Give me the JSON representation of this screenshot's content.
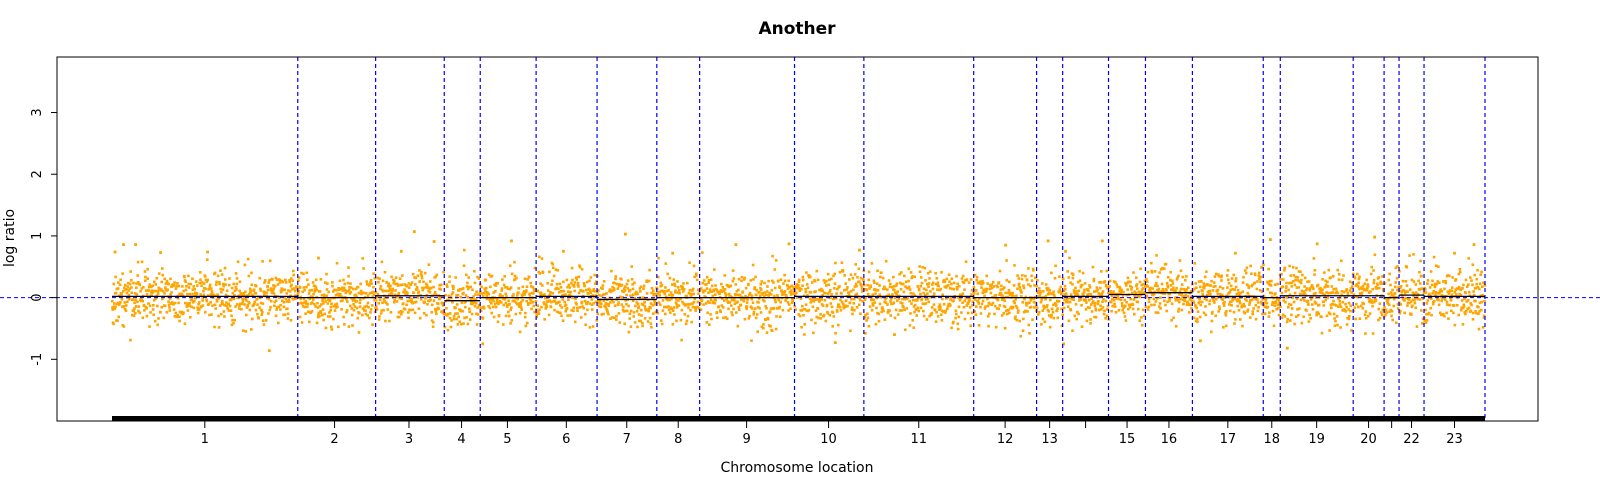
{
  "chart_data": {
    "type": "scatter",
    "title": "Another",
    "xlabel": "Chromosome location",
    "ylabel": "log ratio",
    "ylim": [
      -2.0,
      3.9
    ],
    "yticks": [
      -1,
      0,
      1,
      2,
      3
    ],
    "x_axis": "genome position (fraction of plotted genome, 0-1)",
    "reference_line_y": 0,
    "grid": false,
    "legend": "none",
    "colors": {
      "points": "#ffa500",
      "chromosome_boundaries": "#0000ff",
      "zero_line": "#0000ff",
      "segment_line": "#000000",
      "baseline_bar": "#000000"
    },
    "chromosome_boundaries": [
      0.1353,
      0.192,
      0.242,
      0.2682,
      0.3089,
      0.3533,
      0.3968,
      0.428,
      0.4971,
      0.5476,
      0.6276,
      0.6734,
      0.6924,
      0.7258,
      0.7527,
      0.7869,
      0.8385,
      0.8509,
      0.904,
      0.9265,
      0.9374,
      0.9556
    ],
    "chromosome_ticks": [
      {
        "label": "1",
        "x": 0.0676
      },
      {
        "label": "2",
        "x": 0.1621
      },
      {
        "label": "3",
        "x": 0.2163
      },
      {
        "label": "4",
        "x": 0.2546
      },
      {
        "label": "5",
        "x": 0.288
      },
      {
        "label": "6",
        "x": 0.3309
      },
      {
        "label": "7",
        "x": 0.3749
      },
      {
        "label": "8",
        "x": 0.4124
      },
      {
        "label": "9",
        "x": 0.4622
      },
      {
        "label": "10",
        "x": 0.5219
      },
      {
        "label": "11",
        "x": 0.5876
      },
      {
        "label": "12",
        "x": 0.6505
      },
      {
        "label": "13",
        "x": 0.6829
      },
      {
        "label": "",
        "x": 0.7091
      },
      {
        "label": "15",
        "x": 0.7393
      },
      {
        "label": "16",
        "x": 0.7698
      },
      {
        "label": "17",
        "x": 0.8127
      },
      {
        "label": "18",
        "x": 0.8447
      },
      {
        "label": "19",
        "x": 0.8774
      },
      {
        "label": "20",
        "x": 0.9152
      },
      {
        "label": "",
        "x": 0.932
      },
      {
        "label": "22",
        "x": 0.9465
      },
      {
        "label": "23",
        "x": 0.9778
      }
    ],
    "noise_sd": 0.22,
    "segments": [
      {
        "chrom": "1",
        "mean": 0.02
      },
      {
        "chrom": "2",
        "mean": 0.0
      },
      {
        "chrom": "3",
        "mean": 0.03
      },
      {
        "chrom": "4",
        "mean": -0.05
      },
      {
        "chrom": "5",
        "mean": 0.0
      },
      {
        "chrom": "6",
        "mean": 0.02
      },
      {
        "chrom": "7",
        "mean": -0.03
      },
      {
        "chrom": "8",
        "mean": 0.0
      },
      {
        "chrom": "9",
        "mean": 0.0
      },
      {
        "chrom": "10",
        "mean": 0.02
      },
      {
        "chrom": "11",
        "mean": 0.02
      },
      {
        "chrom": "12",
        "mean": 0.0
      },
      {
        "chrom": "13",
        "mean": 0.0
      },
      {
        "chrom": "14",
        "mean": 0.02
      },
      {
        "chrom": "15",
        "mean": 0.05
      },
      {
        "chrom": "16",
        "mean": 0.08
      },
      {
        "chrom": "17",
        "mean": 0.02
      },
      {
        "chrom": "18",
        "mean": 0.0
      },
      {
        "chrom": "19",
        "mean": 0.03
      },
      {
        "chrom": "20",
        "mean": 0.03
      },
      {
        "chrom": "21",
        "mean": 0.0
      },
      {
        "chrom": "22",
        "mean": 0.04
      },
      {
        "chrom": "23",
        "mean": 0.02
      }
    ],
    "notable_points": [
      {
        "x": 0.0022,
        "y": 0.74
      },
      {
        "x": 0.0084,
        "y": 0.86
      },
      {
        "x": 0.0172,
        "y": 0.86
      },
      {
        "x": 0.0354,
        "y": 0.73
      },
      {
        "x": 0.0696,
        "y": 0.74
      },
      {
        "x": 0.1146,
        "y": -0.86
      },
      {
        "x": 0.1504,
        "y": 0.64
      },
      {
        "x": 0.2107,
        "y": 0.75
      },
      {
        "x": 0.2202,
        "y": 1.07
      },
      {
        "x": 0.2346,
        "y": 0.91
      },
      {
        "x": 0.27,
        "y": -0.75
      },
      {
        "x": 0.291,
        "y": 0.92
      },
      {
        "x": 0.3288,
        "y": 0.75
      },
      {
        "x": 0.3739,
        "y": 1.03
      },
      {
        "x": 0.4084,
        "y": 0.72
      },
      {
        "x": 0.4544,
        "y": 0.86
      },
      {
        "x": 0.4931,
        "y": 0.87
      },
      {
        "x": 0.5268,
        "y": -0.73
      },
      {
        "x": 0.5444,
        "y": 0.77
      },
      {
        "x": 0.5699,
        "y": -0.6
      },
      {
        "x": 0.6509,
        "y": 0.85
      },
      {
        "x": 0.6818,
        "y": 0.92
      },
      {
        "x": 0.6931,
        "y": -0.75
      },
      {
        "x": 0.6945,
        "y": 0.75
      },
      {
        "x": 0.7213,
        "y": 0.92
      },
      {
        "x": 0.7524,
        "y": -0.8
      },
      {
        "x": 0.7927,
        "y": -0.7
      },
      {
        "x": 0.8182,
        "y": 0.72
      },
      {
        "x": 0.8437,
        "y": 0.94
      },
      {
        "x": 0.856,
        "y": -0.82
      },
      {
        "x": 0.8778,
        "y": 0.87
      },
      {
        "x": 0.9196,
        "y": 0.98
      },
      {
        "x": 0.9778,
        "y": 0.72
      },
      {
        "x": 0.992,
        "y": 0.86
      }
    ]
  }
}
